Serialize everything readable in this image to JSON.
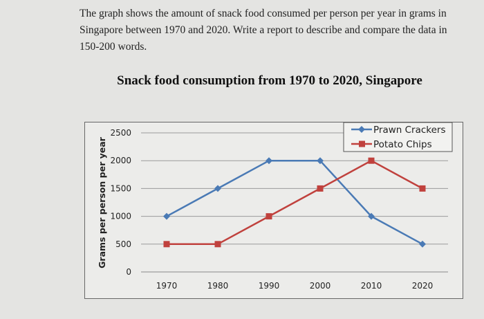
{
  "prompt": "The graph shows the amount of snack food consumed per person per year in grams in Singapore between 1970 and 2020. Write a report to describe and compare the data in 150-200 words.",
  "chart_data": {
    "type": "line",
    "title": "Snack food consumption from 1970 to 2020, Singapore",
    "xlabel": "",
    "ylabel": "Grams per person per year",
    "categories": [
      "1970",
      "1980",
      "1990",
      "2000",
      "2010",
      "2020"
    ],
    "yticks": [
      "0",
      "500",
      "1000",
      "1500",
      "2000",
      "2500"
    ],
    "ylim": [
      0,
      2500
    ],
    "grid": true,
    "legend_position": "top-right",
    "series": [
      {
        "name": "Prawn Crackers",
        "values": [
          1000,
          1500,
          2000,
          2000,
          1000,
          500
        ],
        "color": "#4a7ab5",
        "marker": "diamond"
      },
      {
        "name": "Potato Chips",
        "values": [
          500,
          500,
          1000,
          1500,
          2000,
          1500
        ],
        "color": "#c0413d",
        "marker": "square"
      }
    ]
  }
}
